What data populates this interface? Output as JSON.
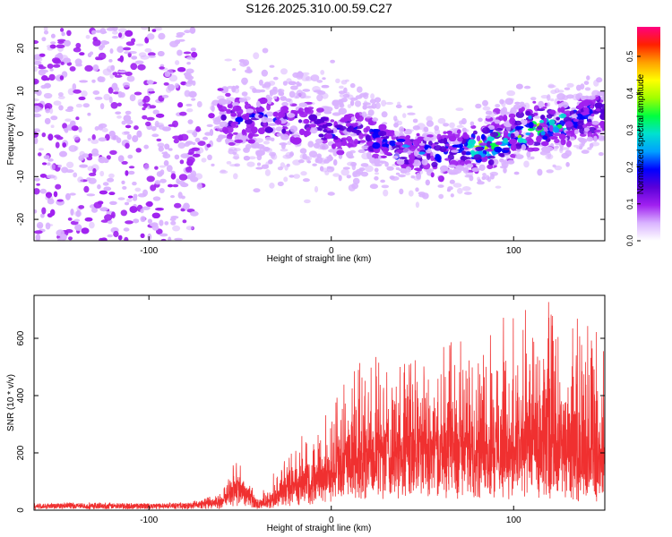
{
  "chart_data": [
    {
      "type": "heatmap",
      "title": "S126.2025.310.00.59.C27",
      "xlabel": "Height of straight line (km)",
      "ylabel": "Frequency (Hz)",
      "xlim": [
        -163,
        150
      ],
      "ylim": [
        -25,
        25
      ],
      "x_ticks": [
        -100,
        0,
        100
      ],
      "y_ticks": [
        -20,
        -10,
        0,
        10,
        20
      ],
      "colorbar": {
        "label": "Normalized spectral amplitude",
        "range": [
          0,
          0.58
        ],
        "ticks": [
          0.0,
          0.1,
          0.2,
          0.3,
          0.4,
          0.5
        ],
        "colors": [
          "#ffffff",
          "#d9b3ff",
          "#a020f0",
          "#5a00d9",
          "#0000ff",
          "#00a0ff",
          "#00e0d0",
          "#00ff40",
          "#a0ff00",
          "#ffff00",
          "#ffa000",
          "#ff2000",
          "#ff0080"
        ]
      },
      "ridge": [
        {
          "x": -163,
          "y": 2
        },
        {
          "x": -75,
          "y": -4
        },
        {
          "x": -60,
          "y": 3
        },
        {
          "x": -40,
          "y": 4
        },
        {
          "x": -20,
          "y": 3
        },
        {
          "x": 0,
          "y": 1
        },
        {
          "x": 20,
          "y": 0
        },
        {
          "x": 40,
          "y": -4
        },
        {
          "x": 55,
          "y": -5
        },
        {
          "x": 70,
          "y": -4
        },
        {
          "x": 85,
          "y": -3
        },
        {
          "x": 100,
          "y": 0
        },
        {
          "x": 120,
          "y": 2
        },
        {
          "x": 150,
          "y": 5
        }
      ]
    },
    {
      "type": "line",
      "xlabel": "Height of straight line (km)",
      "ylabel": "SNR (10 * v/v)",
      "xlim": [
        -163,
        150
      ],
      "ylim": [
        0,
        750
      ],
      "x_ticks": [
        -100,
        0,
        100
      ],
      "y_ticks": [
        0,
        200,
        400,
        600
      ],
      "color": "#f03030",
      "envelope": [
        {
          "x": -163,
          "base": 15,
          "peak": 25
        },
        {
          "x": -80,
          "base": 15,
          "peak": 25
        },
        {
          "x": -60,
          "base": 25,
          "peak": 60
        },
        {
          "x": -52,
          "base": 70,
          "peak": 190
        },
        {
          "x": -48,
          "base": 60,
          "peak": 160
        },
        {
          "x": -40,
          "base": 15,
          "peak": 40
        },
        {
          "x": -30,
          "base": 40,
          "peak": 150
        },
        {
          "x": -15,
          "base": 90,
          "peak": 270
        },
        {
          "x": 0,
          "base": 110,
          "peak": 350
        },
        {
          "x": 10,
          "base": 150,
          "peak": 530
        },
        {
          "x": 30,
          "base": 180,
          "peak": 560
        },
        {
          "x": 60,
          "base": 190,
          "peak": 580
        },
        {
          "x": 80,
          "base": 190,
          "peak": 620
        },
        {
          "x": 100,
          "base": 170,
          "peak": 700
        },
        {
          "x": 120,
          "base": 170,
          "peak": 740
        },
        {
          "x": 140,
          "base": 150,
          "peak": 650
        },
        {
          "x": 150,
          "base": 150,
          "peak": 620
        }
      ]
    }
  ]
}
